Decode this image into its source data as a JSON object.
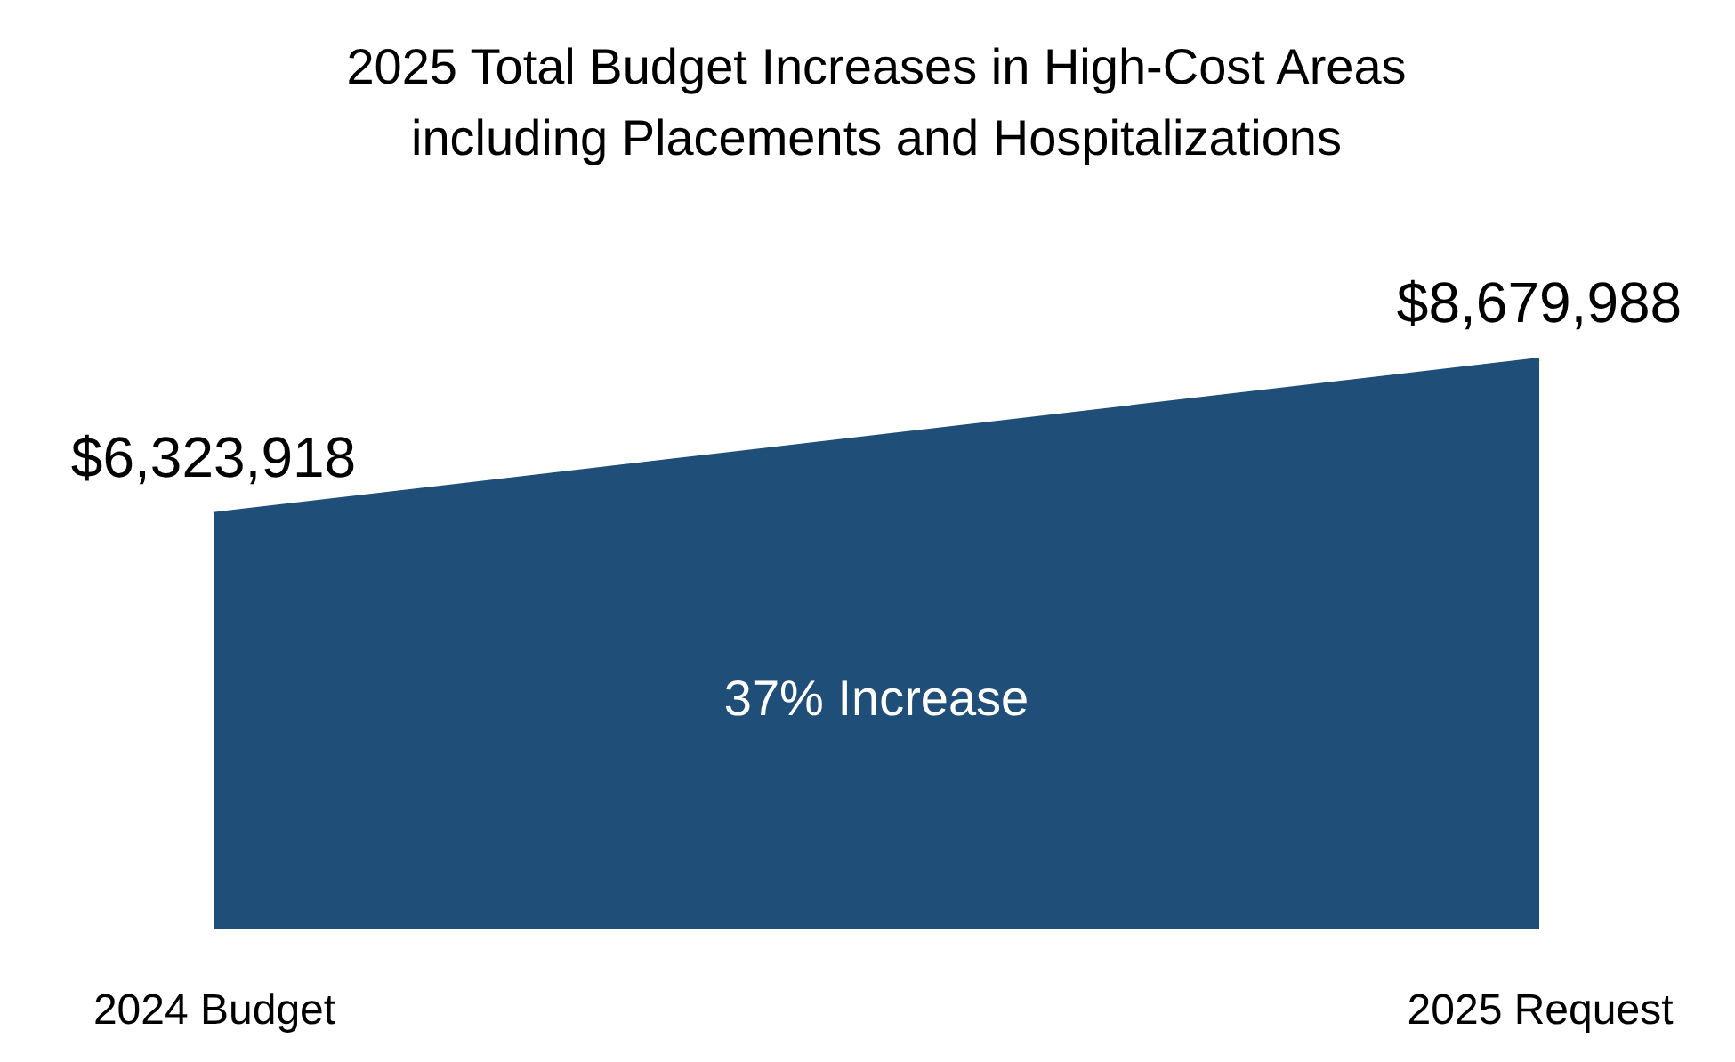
{
  "chart_data": {
    "type": "area",
    "title": [
      "2025 Total Budget Increases in High-Cost Areas",
      "including Placements and Hospitalizations"
    ],
    "categories": [
      "2024 Budget",
      "2025 Request"
    ],
    "values": [
      6323918,
      8679988
    ],
    "value_labels": [
      "$6,323,918",
      "$8,679,988"
    ],
    "color": "#1f4e79",
    "annotations": [
      "37% Increase"
    ],
    "tick_labels": "x"
  }
}
